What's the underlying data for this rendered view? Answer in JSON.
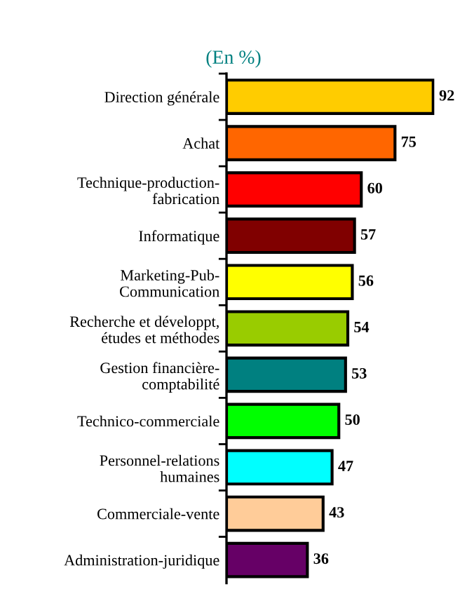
{
  "chart_data": {
    "type": "bar",
    "orientation": "horizontal",
    "title": "(En %)",
    "categories": [
      "Direction générale",
      "Achat",
      "Technique-production-\nfabrication",
      "Informatique",
      "Marketing-Pub-\nCommunication",
      "Recherche et développt,\nétudes et méthodes",
      "Gestion financière-\ncomptabilité",
      "Technico-commerciale",
      "Personnel-relations\nhumaines",
      "Commerciale-vente",
      "Administration-juridique"
    ],
    "values": [
      92,
      75,
      60,
      57,
      56,
      54,
      53,
      50,
      47,
      43,
      36
    ],
    "colors": [
      "#ffcc00",
      "#ff6600",
      "#ff0000",
      "#800000",
      "#ffff00",
      "#99cc00",
      "#008080",
      "#00ff00",
      "#00ffff",
      "#ffcc99",
      "#660066"
    ],
    "data_labels": true,
    "grid": false,
    "legend": false
  }
}
